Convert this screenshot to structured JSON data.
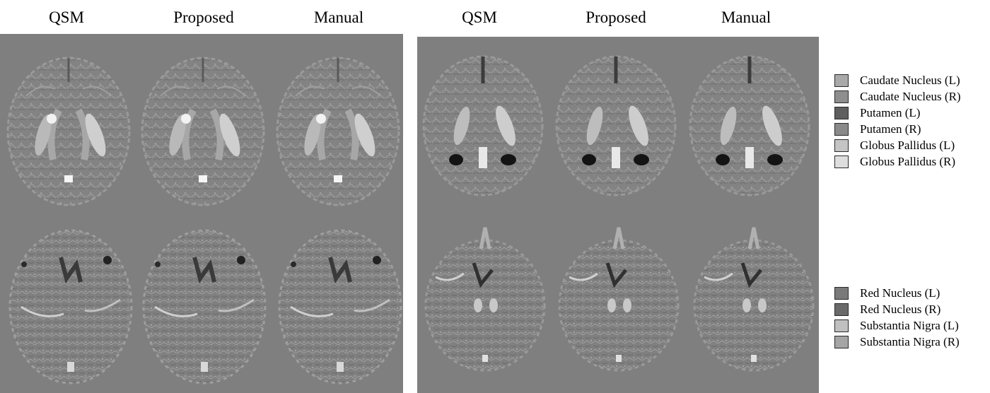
{
  "column_titles": [
    "QSM",
    "Proposed",
    "Manual",
    "QSM",
    "Proposed",
    "Manual"
  ],
  "legend_top": [
    {
      "label": "Caudate Nucleus (L)",
      "color": "#a9a9a9"
    },
    {
      "label": "Caudate Nucleus (R)",
      "color": "#8e8e8e"
    },
    {
      "label": "Putamen (L)",
      "color": "#5e5e5e"
    },
    {
      "label": "Putamen (R)",
      "color": "#8a8a8a"
    },
    {
      "label": "Globus Pallidus (L)",
      "color": "#c4c4c4"
    },
    {
      "label": "Globus Pallidus (R)",
      "color": "#dedede"
    }
  ],
  "legend_bottom": [
    {
      "label": "Red Nucleus (L)",
      "color": "#7a7a7a"
    },
    {
      "label": "Red Nucleus (R)",
      "color": "#6a6a6a"
    },
    {
      "label": "Substantia Nigra (L)",
      "color": "#c0c0c0"
    },
    {
      "label": "Substantia Nigra (R)",
      "color": "#a5a5a5"
    }
  ],
  "panel_background": "#7f7f7f"
}
